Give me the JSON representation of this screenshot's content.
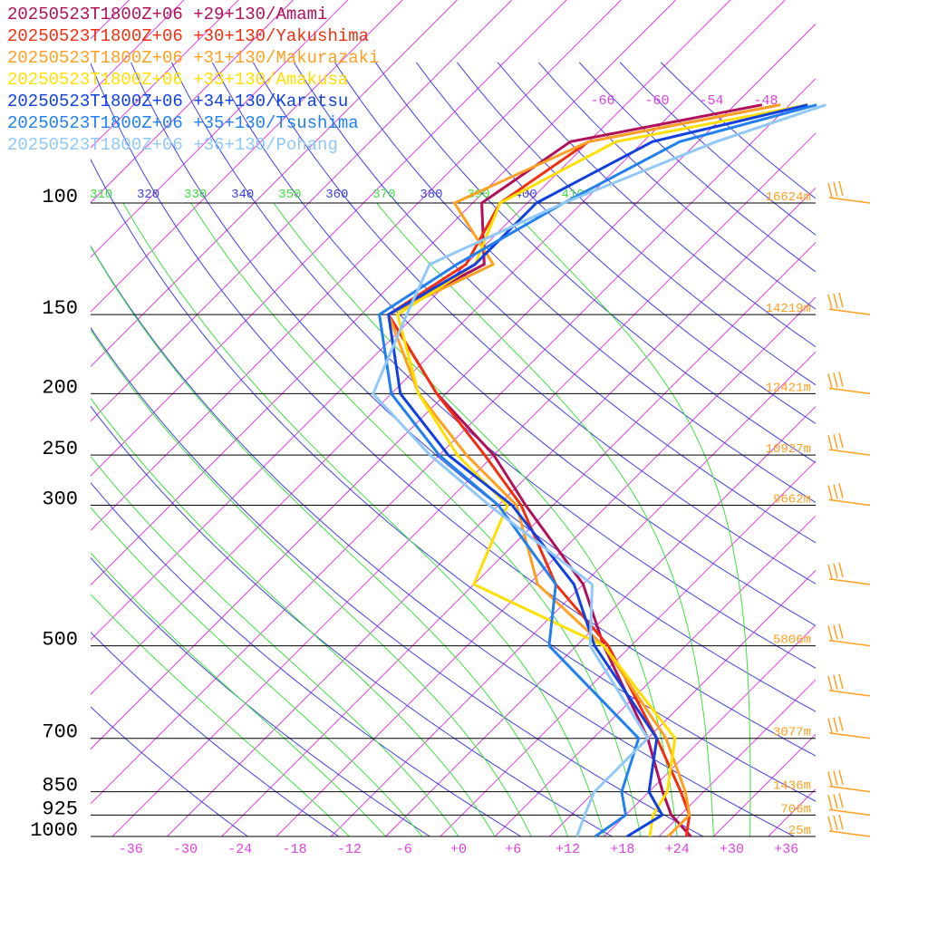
{
  "colors": {
    "isobar": "#000000",
    "isotherm": "#e040e0",
    "dry_adiabat": "#4040e0",
    "moist_adiabat": "#40e040",
    "height_label": "#ffa020",
    "wind_barb": "#ffa020",
    "background": "#ffffff"
  },
  "chart_data": {
    "type": "line",
    "chart_kind": "skew-T log-P sounding",
    "pressure_axis": {
      "ticks": [
        100,
        150,
        200,
        250,
        300,
        500,
        700,
        850,
        925,
        1000
      ],
      "labels": [
        "100",
        "150",
        "200",
        "250",
        "300",
        "500",
        "700",
        "850",
        "925",
        "1000"
      ],
      "scale": "log",
      "range": [
        1000,
        100
      ]
    },
    "temperature_axis": {
      "ticks": [
        -36,
        -30,
        -24,
        -18,
        -12,
        -6,
        0,
        6,
        12,
        18,
        24,
        30,
        36
      ],
      "labels": [
        "-36",
        "-30",
        "-24",
        "-18",
        "-12",
        "-6",
        "+0",
        "+6",
        "+12",
        "+18",
        "+24",
        "+30",
        "+36"
      ],
      "range": [
        -40,
        40
      ]
    },
    "upper_isotherm_labels": [
      "-66",
      "-60",
      "-54",
      "-48"
    ],
    "theta_labels": [
      "310",
      "320",
      "330",
      "340",
      "350",
      "360",
      "370",
      "380",
      "390",
      "400",
      "410"
    ],
    "height_labels": [
      {
        "p": 100,
        "label": "16624m"
      },
      {
        "p": 150,
        "label": "14219m"
      },
      {
        "p": 200,
        "label": "12421m"
      },
      {
        "p": 250,
        "label": "10927m"
      },
      {
        "p": 300,
        "label": "9662m"
      },
      {
        "p": 500,
        "label": "5806m"
      },
      {
        "p": 700,
        "label": "3077m"
      },
      {
        "p": 850,
        "label": "1436m"
      },
      {
        "p": 925,
        "label": "706m"
      },
      {
        "p": 1000,
        "label": "25m"
      }
    ],
    "pressure_levels": [
      1000,
      925,
      850,
      700,
      500,
      400,
      300,
      250,
      200,
      150,
      125,
      100,
      80,
      70
    ],
    "series": [
      {
        "name": "20250523T1800Z+06 +29+130/Amami",
        "color": "#b0105a",
        "temperature": [
          25.5,
          21,
          17.5,
          10,
          -5,
          -14,
          -29,
          -38,
          -51,
          -65,
          -60,
          -67,
          -64,
          -47
        ]
      },
      {
        "name": "20250523T1800Z+06 +30+130/Yakushima",
        "color": "#f03010",
        "temperature": [
          25,
          23,
          19.5,
          11,
          -4.5,
          -17,
          -29.5,
          -39,
          -51,
          -65,
          -62,
          -65,
          -62,
          -45
        ]
      },
      {
        "name": "20250523T1800Z+06 +31+130/Makurazaki",
        "color": "#ffa020",
        "temperature": [
          23,
          23,
          20,
          12,
          -5,
          -19,
          -30,
          -41,
          -53,
          -65,
          -59,
          -70,
          -62,
          -45
        ]
      },
      {
        "name": "20250523T1800Z+06 +33+130/Amakusa",
        "color": "#ffe000",
        "temperature": [
          21,
          19,
          18,
          13,
          -5,
          -26,
          -31,
          -42,
          -53,
          -64,
          -61,
          -65,
          -59,
          -42
        ]
      },
      {
        "name": "20250523T1800Z+06 +34+130/Karatsu",
        "color": "#1040e0",
        "temperature": [
          18.5,
          20,
          16,
          11,
          -6,
          -15,
          -30.5,
          -43,
          -55,
          -65,
          -61,
          -61,
          -55,
          -42
        ]
      },
      {
        "name": "20250523T1800Z+06 +35+130/Tsushima",
        "color": "#2080f0",
        "temperature": [
          15,
          16,
          13,
          9,
          -11,
          -17,
          -32,
          -44,
          -56,
          -66,
          -63,
          -58,
          -52,
          -41
        ]
      },
      {
        "name": "20250523T1800Z+06 +36+130/Pohang",
        "color": "#90c8f8",
        "temperature": [
          13,
          11.5,
          10,
          10,
          -6.5,
          -13,
          -33,
          -45,
          -58,
          -63,
          -66,
          -58,
          -48,
          -40
        ]
      }
    ]
  }
}
